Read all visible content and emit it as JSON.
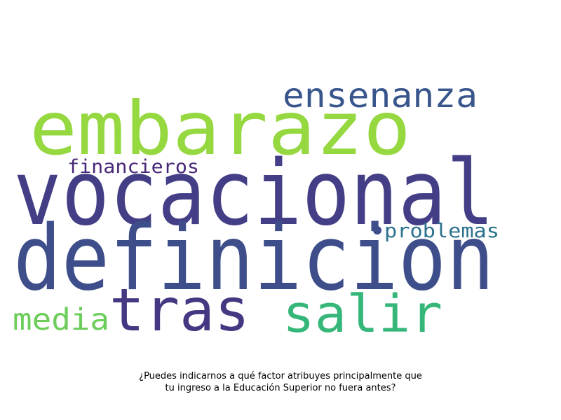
{
  "chart_data": {
    "type": "wordcloud",
    "title": "¿Puedes indicarnos a qué factor atribuyes principalmente que tu ingreso a la Educación Superior no fuera antes?",
    "title_lines": [
      "¿Puedes indicarnos a qué factor atribuyes principalmente que",
      "tu ingreso a la Educación Superior no fuera antes?"
    ],
    "words": [
      {
        "text": "vocacional",
        "rank": 1,
        "color": "#433e85"
      },
      {
        "text": "definicion",
        "rank": 2,
        "color": "#3d4e8a"
      },
      {
        "text": "embarazo",
        "rank": 3,
        "color": "#95d840"
      },
      {
        "text": "tras",
        "rank": 4,
        "color": "#453781"
      },
      {
        "text": "salir",
        "rank": 5,
        "color": "#35b779"
      },
      {
        "text": "ensenanza",
        "rank": 6,
        "color": "#39568c"
      },
      {
        "text": "media",
        "rank": 7,
        "color": "#6ccd5a"
      },
      {
        "text": "problemas",
        "rank": 8,
        "color": "#2c728e"
      },
      {
        "text": "financieros",
        "rank": 9,
        "color": "#482878"
      }
    ]
  }
}
